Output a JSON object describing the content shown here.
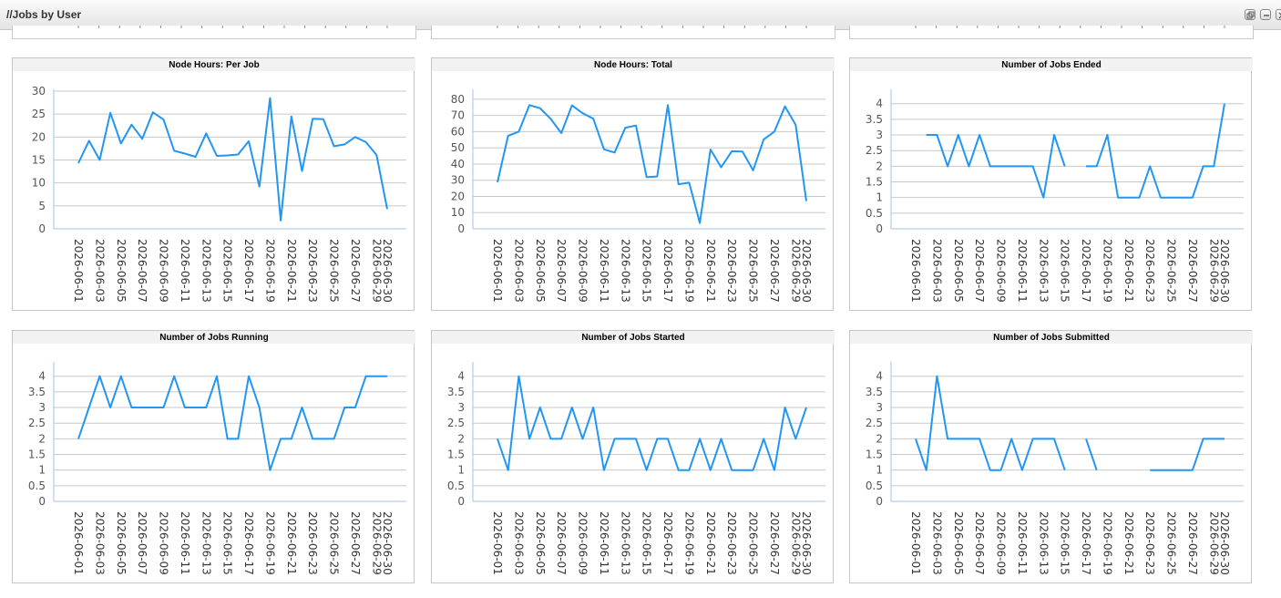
{
  "portlet": {
    "title": "//Jobs by User",
    "tools": [
      "restore-icon",
      "minimize-icon",
      "close-icon"
    ]
  },
  "colors": {
    "line": "#2196F3",
    "grid": "#c8c8c8",
    "axis": "#9fc3e7",
    "title_bg": "#f2f2f2"
  },
  "chart_data": [
    {
      "type": "line",
      "title": "Node Hours: Per Job",
      "x": [
        "2026-06-01",
        "2026-06-02",
        "2026-06-03",
        "2026-06-04",
        "2026-06-05",
        "2026-06-06",
        "2026-06-07",
        "2026-06-08",
        "2026-06-09",
        "2026-06-10",
        "2026-06-11",
        "2026-06-12",
        "2026-06-13",
        "2026-06-14",
        "2026-06-15",
        "2026-06-16",
        "2026-06-17",
        "2026-06-18",
        "2026-06-19",
        "2026-06-20",
        "2026-06-21",
        "2026-06-22",
        "2026-06-23",
        "2026-06-24",
        "2026-06-25",
        "2026-06-26",
        "2026-06-27",
        "2026-06-28",
        "2026-06-29",
        "2026-06-30"
      ],
      "xticks": [
        "2026-06-01",
        "2026-06-03",
        "2026-06-05",
        "2026-06-07",
        "2026-06-09",
        "2026-06-11",
        "2026-06-13",
        "2026-06-15",
        "2026-06-17",
        "2026-06-19",
        "2026-06-21",
        "2026-06-23",
        "2026-06-25",
        "2026-06-27",
        "2026-06-29",
        "2026-06-30"
      ],
      "values": [
        14.3,
        19.2,
        15,
        25.3,
        18.6,
        22.7,
        19.6,
        25.4,
        23.8,
        17,
        16.4,
        15.7,
        20.8,
        15.9,
        16,
        16.2,
        19.1,
        9.2,
        28.5,
        1.8,
        24.5,
        12.6,
        24,
        23.9,
        18,
        18.4,
        20,
        18.9,
        16.1,
        4.3
      ],
      "ylim": [
        0,
        30
      ],
      "yticks": [
        "0",
        "5",
        "10",
        "15",
        "20",
        "25",
        "30"
      ]
    },
    {
      "type": "line",
      "title": "Node Hours: Total",
      "x": [
        "2026-06-01",
        "2026-06-02",
        "2026-06-03",
        "2026-06-04",
        "2026-06-05",
        "2026-06-06",
        "2026-06-07",
        "2026-06-08",
        "2026-06-09",
        "2026-06-10",
        "2026-06-11",
        "2026-06-12",
        "2026-06-13",
        "2026-06-14",
        "2026-06-15",
        "2026-06-16",
        "2026-06-17",
        "2026-06-18",
        "2026-06-19",
        "2026-06-20",
        "2026-06-21",
        "2026-06-22",
        "2026-06-23",
        "2026-06-24",
        "2026-06-25",
        "2026-06-26",
        "2026-06-27",
        "2026-06-28",
        "2026-06-29",
        "2026-06-30"
      ],
      "xticks": [
        "2026-06-01",
        "2026-06-03",
        "2026-06-05",
        "2026-06-07",
        "2026-06-09",
        "2026-06-11",
        "2026-06-13",
        "2026-06-15",
        "2026-06-17",
        "2026-06-19",
        "2026-06-21",
        "2026-06-23",
        "2026-06-25",
        "2026-06-27",
        "2026-06-29",
        "2026-06-30"
      ],
      "values": [
        28.7,
        57.5,
        60,
        76.4,
        74.5,
        67.9,
        59.1,
        76.2,
        71.4,
        68,
        49.1,
        47.1,
        62.4,
        63.8,
        32,
        32.3,
        76.4,
        27.5,
        28.5,
        3.6,
        49,
        38,
        47.9,
        47.7,
        36.1,
        55.2,
        60,
        75.6,
        64.2,
        17.1
      ],
      "ylim": [
        0,
        85
      ],
      "yticks": [
        "0",
        "10",
        "20",
        "30",
        "40",
        "50",
        "60",
        "70",
        "80"
      ]
    },
    {
      "type": "line",
      "title": "Number of Jobs Ended",
      "x": [
        "2026-06-01",
        "2026-06-02",
        "2026-06-03",
        "2026-06-04",
        "2026-06-05",
        "2026-06-06",
        "2026-06-07",
        "2026-06-08",
        "2026-06-09",
        "2026-06-10",
        "2026-06-11",
        "2026-06-12",
        "2026-06-13",
        "2026-06-14",
        "2026-06-15",
        "2026-06-16",
        "2026-06-17",
        "2026-06-18",
        "2026-06-19",
        "2026-06-20",
        "2026-06-21",
        "2026-06-22",
        "2026-06-23",
        "2026-06-24",
        "2026-06-25",
        "2026-06-26",
        "2026-06-27",
        "2026-06-28",
        "2026-06-29",
        "2026-06-30"
      ],
      "xticks": [
        "2026-06-01",
        "2026-06-03",
        "2026-06-05",
        "2026-06-07",
        "2026-06-09",
        "2026-06-11",
        "2026-06-13",
        "2026-06-15",
        "2026-06-17",
        "2026-06-19",
        "2026-06-21",
        "2026-06-23",
        "2026-06-25",
        "2026-06-27",
        "2026-06-29",
        "2026-06-30"
      ],
      "values": [
        null,
        3,
        3,
        2,
        3,
        2,
        3,
        2,
        2,
        2,
        2,
        2,
        1,
        3,
        2,
        null,
        2,
        2,
        3,
        1,
        1,
        1,
        2,
        1,
        1,
        1,
        1,
        2,
        2,
        4
      ],
      "ylim": [
        0,
        4.4
      ],
      "yticks": [
        "0",
        "0.5",
        "1",
        "1.5",
        "2",
        "2.5",
        "3",
        "3.5",
        "4"
      ]
    },
    {
      "type": "line",
      "title": "Number of Jobs Running",
      "x": [
        "2026-06-01",
        "2026-06-02",
        "2026-06-03",
        "2026-06-04",
        "2026-06-05",
        "2026-06-06",
        "2026-06-07",
        "2026-06-08",
        "2026-06-09",
        "2026-06-10",
        "2026-06-11",
        "2026-06-12",
        "2026-06-13",
        "2026-06-14",
        "2026-06-15",
        "2026-06-16",
        "2026-06-17",
        "2026-06-18",
        "2026-06-19",
        "2026-06-20",
        "2026-06-21",
        "2026-06-22",
        "2026-06-23",
        "2026-06-24",
        "2026-06-25",
        "2026-06-26",
        "2026-06-27",
        "2026-06-28",
        "2026-06-29",
        "2026-06-30"
      ],
      "xticks": [
        "2026-06-01",
        "2026-06-03",
        "2026-06-05",
        "2026-06-07",
        "2026-06-09",
        "2026-06-11",
        "2026-06-13",
        "2026-06-15",
        "2026-06-17",
        "2026-06-19",
        "2026-06-21",
        "2026-06-23",
        "2026-06-25",
        "2026-06-27",
        "2026-06-29",
        "2026-06-30"
      ],
      "values": [
        2,
        3,
        4,
        3,
        4,
        3,
        3,
        3,
        3,
        4,
        3,
        3,
        3,
        4,
        2,
        2,
        4,
        3,
        1,
        2,
        2,
        3,
        2,
        2,
        2,
        3,
        3,
        4,
        4,
        4
      ],
      "ylim": [
        0,
        4.4
      ],
      "yticks": [
        "0",
        "0.5",
        "1",
        "1.5",
        "2",
        "2.5",
        "3",
        "3.5",
        "4"
      ]
    },
    {
      "type": "line",
      "title": "Number of Jobs Started",
      "x": [
        "2026-06-01",
        "2026-06-02",
        "2026-06-03",
        "2026-06-04",
        "2026-06-05",
        "2026-06-06",
        "2026-06-07",
        "2026-06-08",
        "2026-06-09",
        "2026-06-10",
        "2026-06-11",
        "2026-06-12",
        "2026-06-13",
        "2026-06-14",
        "2026-06-15",
        "2026-06-16",
        "2026-06-17",
        "2026-06-18",
        "2026-06-19",
        "2026-06-20",
        "2026-06-21",
        "2026-06-22",
        "2026-06-23",
        "2026-06-24",
        "2026-06-25",
        "2026-06-26",
        "2026-06-27",
        "2026-06-28",
        "2026-06-29",
        "2026-06-30"
      ],
      "xticks": [
        "2026-06-01",
        "2026-06-03",
        "2026-06-05",
        "2026-06-07",
        "2026-06-09",
        "2026-06-11",
        "2026-06-13",
        "2026-06-15",
        "2026-06-17",
        "2026-06-19",
        "2026-06-21",
        "2026-06-23",
        "2026-06-25",
        "2026-06-27",
        "2026-06-29",
        "2026-06-30"
      ],
      "values": [
        2,
        1,
        4,
        2,
        3,
        2,
        2,
        3,
        2,
        3,
        1,
        2,
        2,
        2,
        1,
        2,
        2,
        1,
        1,
        2,
        1,
        2,
        1,
        1,
        1,
        2,
        1,
        3,
        2,
        3
      ],
      "ylim": [
        0,
        4.4
      ],
      "yticks": [
        "0",
        "0.5",
        "1",
        "1.5",
        "2",
        "2.5",
        "3",
        "3.5",
        "4"
      ]
    },
    {
      "type": "line",
      "title": "Number of Jobs Submitted",
      "x": [
        "2026-06-01",
        "2026-06-02",
        "2026-06-03",
        "2026-06-04",
        "2026-06-05",
        "2026-06-06",
        "2026-06-07",
        "2026-06-08",
        "2026-06-09",
        "2026-06-10",
        "2026-06-11",
        "2026-06-12",
        "2026-06-13",
        "2026-06-14",
        "2026-06-15",
        "2026-06-16",
        "2026-06-17",
        "2026-06-18",
        "2026-06-19",
        "2026-06-20",
        "2026-06-21",
        "2026-06-22",
        "2026-06-23",
        "2026-06-24",
        "2026-06-25",
        "2026-06-26",
        "2026-06-27",
        "2026-06-28",
        "2026-06-29",
        "2026-06-30"
      ],
      "xticks": [
        "2026-06-01",
        "2026-06-03",
        "2026-06-05",
        "2026-06-07",
        "2026-06-09",
        "2026-06-11",
        "2026-06-13",
        "2026-06-15",
        "2026-06-17",
        "2026-06-19",
        "2026-06-21",
        "2026-06-23",
        "2026-06-25",
        "2026-06-27",
        "2026-06-29",
        "2026-06-30"
      ],
      "values": [
        2,
        1,
        4,
        2,
        2,
        2,
        2,
        1,
        1,
        2,
        1,
        2,
        2,
        2,
        1,
        null,
        2,
        1,
        null,
        null,
        1,
        null,
        1,
        1,
        1,
        1,
        1,
        2,
        2,
        2
      ],
      "ylim": [
        0,
        4.4
      ],
      "yticks": [
        "0",
        "0.5",
        "1",
        "1.5",
        "2",
        "2.5",
        "3",
        "3.5",
        "4"
      ]
    }
  ]
}
